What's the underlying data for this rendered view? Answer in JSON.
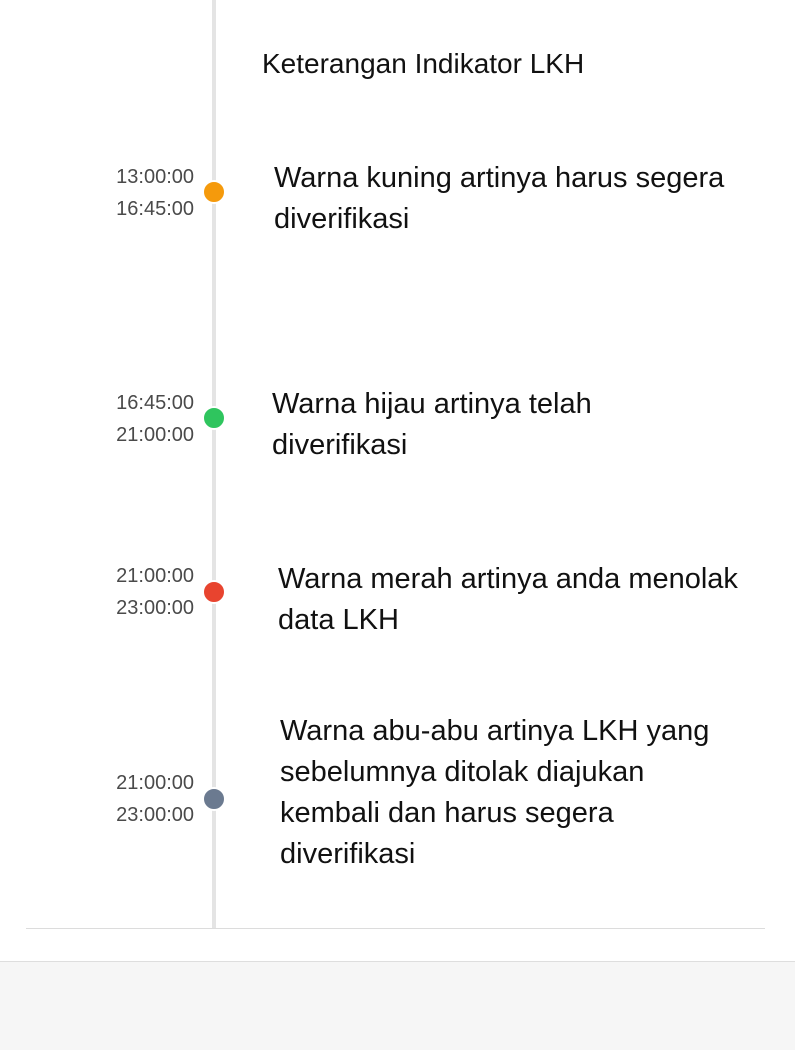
{
  "heading": "Keterangan Indikator LKH",
  "items": [
    {
      "start": "13:00:00",
      "end": "16:45:00",
      "color": "#f59a0c",
      "lines": [
        "Warna kuning artinya harus segera",
        "diverifikasi"
      ]
    },
    {
      "start": "16:45:00",
      "end": "21:00:00",
      "color": "#2fc55e",
      "lines": [
        "Warna hijau artinya telah",
        "diverifikasi"
      ]
    },
    {
      "start": "21:00:00",
      "end": "23:00:00",
      "color": "#e8442f",
      "lines": [
        "Warna merah artinya anda menolak",
        "data LKH"
      ]
    },
    {
      "start": "21:00:00",
      "end": "23:00:00",
      "color": "#6b7a90",
      "lines": [
        "Warna abu-abu artinya LKH yang",
        "sebelumnya ditolak diajukan",
        "kembali dan harus segera",
        "diverifikasi"
      ]
    }
  ]
}
